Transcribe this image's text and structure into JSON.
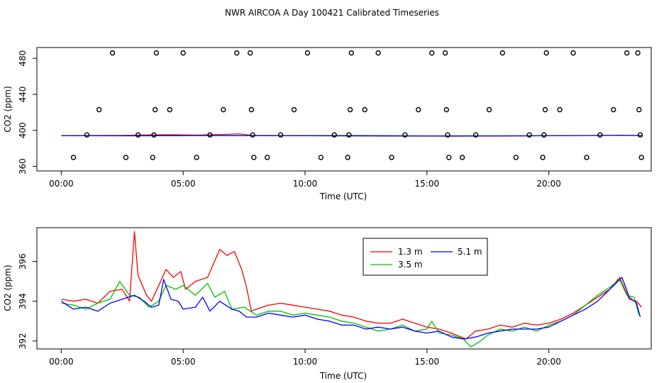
{
  "title": "NWR AIRCOA A  Day 100421  Calibrated Timeseries",
  "colors": {
    "red": "#ff0000",
    "green": "#00c000",
    "blue": "#0000ff",
    "black": "#000000"
  },
  "chart_data": [
    {
      "type": "scatter",
      "name": "top-panel",
      "xlabel": "Time (UTC)",
      "ylabel": "CO2 (ppm)",
      "xlim": [
        -1,
        24.2
      ],
      "ylim": [
        355,
        492
      ],
      "xticks": [
        0,
        5,
        10,
        15,
        20
      ],
      "xtick_labels": [
        "00:00",
        "05:00",
        "10:00",
        "15:00",
        "20:00"
      ],
      "yticks": [
        360,
        400,
        440,
        480
      ],
      "ytick_labels": [
        "360",
        "400",
        "440",
        "480"
      ],
      "reference_points": [
        {
          "x": 0.5,
          "y": 370
        },
        {
          "x": 1.05,
          "y": 395
        },
        {
          "x": 1.55,
          "y": 423
        },
        {
          "x": 2.1,
          "y": 486
        },
        {
          "x": 2.65,
          "y": 370
        },
        {
          "x": 3.15,
          "y": 395
        },
        {
          "x": 3.75,
          "y": 370
        },
        {
          "x": 3.8,
          "y": 395
        },
        {
          "x": 3.85,
          "y": 423
        },
        {
          "x": 3.9,
          "y": 486
        },
        {
          "x": 4.45,
          "y": 423
        },
        {
          "x": 5.0,
          "y": 486
        },
        {
          "x": 5.55,
          "y": 370
        },
        {
          "x": 6.1,
          "y": 395
        },
        {
          "x": 6.65,
          "y": 423
        },
        {
          "x": 7.2,
          "y": 486
        },
        {
          "x": 7.75,
          "y": 486
        },
        {
          "x": 7.8,
          "y": 423
        },
        {
          "x": 7.85,
          "y": 395
        },
        {
          "x": 7.9,
          "y": 370
        },
        {
          "x": 8.45,
          "y": 370
        },
        {
          "x": 9.0,
          "y": 395
        },
        {
          "x": 9.55,
          "y": 423
        },
        {
          "x": 10.1,
          "y": 486
        },
        {
          "x": 10.65,
          "y": 370
        },
        {
          "x": 11.2,
          "y": 395
        },
        {
          "x": 11.75,
          "y": 370
        },
        {
          "x": 11.8,
          "y": 395
        },
        {
          "x": 11.85,
          "y": 423
        },
        {
          "x": 11.9,
          "y": 486
        },
        {
          "x": 12.45,
          "y": 423
        },
        {
          "x": 13.0,
          "y": 486
        },
        {
          "x": 13.55,
          "y": 370
        },
        {
          "x": 14.1,
          "y": 395
        },
        {
          "x": 14.65,
          "y": 423
        },
        {
          "x": 15.2,
          "y": 486
        },
        {
          "x": 15.75,
          "y": 486
        },
        {
          "x": 15.8,
          "y": 423
        },
        {
          "x": 15.85,
          "y": 395
        },
        {
          "x": 15.9,
          "y": 370
        },
        {
          "x": 16.45,
          "y": 370
        },
        {
          "x": 17.0,
          "y": 395
        },
        {
          "x": 17.55,
          "y": 423
        },
        {
          "x": 18.1,
          "y": 486
        },
        {
          "x": 18.65,
          "y": 370
        },
        {
          "x": 19.2,
          "y": 395
        },
        {
          "x": 19.75,
          "y": 370
        },
        {
          "x": 19.8,
          "y": 395
        },
        {
          "x": 19.85,
          "y": 423
        },
        {
          "x": 19.9,
          "y": 486
        },
        {
          "x": 20.45,
          "y": 423
        },
        {
          "x": 21.0,
          "y": 486
        },
        {
          "x": 21.55,
          "y": 370
        },
        {
          "x": 22.1,
          "y": 395
        },
        {
          "x": 22.65,
          "y": 423
        },
        {
          "x": 23.2,
          "y": 486
        },
        {
          "x": 23.65,
          "y": 486
        },
        {
          "x": 23.7,
          "y": 423
        },
        {
          "x": 23.75,
          "y": 395
        },
        {
          "x": 23.8,
          "y": 370
        }
      ]
    },
    {
      "type": "line",
      "name": "bottom-panel",
      "xlabel": "Time (UTC)",
      "ylabel": "CO2 (ppm)",
      "xlim": [
        -1,
        24.2
      ],
      "ylim": [
        391.6,
        397.7
      ],
      "xticks": [
        0,
        5,
        10,
        15,
        20
      ],
      "xtick_labels": [
        "00:00",
        "05:00",
        "10:00",
        "15:00",
        "20:00"
      ],
      "yticks": [
        392,
        394,
        396
      ],
      "ytick_labels": [
        "392",
        "394",
        "396"
      ],
      "legend": {
        "position": "top-center",
        "entries": [
          {
            "label": "1.3 m",
            "color": "#ff0000"
          },
          {
            "label": "3.5 m",
            "color": "#00c000"
          },
          {
            "label": "5.1 m",
            "color": "#0000ff"
          }
        ]
      },
      "series": [
        {
          "name": "1.3 m",
          "color": "#ff0000",
          "points": [
            [
              0,
              394.1
            ],
            [
              0.5,
              394.0
            ],
            [
              1,
              394.1
            ],
            [
              1.5,
              393.9
            ],
            [
              2,
              394.5
            ],
            [
              2.5,
              394.6
            ],
            [
              2.8,
              394.0
            ],
            [
              3.0,
              397.5
            ],
            [
              3.15,
              395.3
            ],
            [
              3.5,
              394.3
            ],
            [
              3.7,
              394.0
            ],
            [
              4.0,
              394.8
            ],
            [
              4.3,
              395.6
            ],
            [
              4.6,
              395.2
            ],
            [
              4.9,
              395.5
            ],
            [
              5.1,
              394.6
            ],
            [
              5.5,
              395.0
            ],
            [
              6.0,
              395.2
            ],
            [
              6.5,
              396.6
            ],
            [
              6.8,
              396.3
            ],
            [
              7.1,
              396.5
            ],
            [
              7.4,
              395.6
            ],
            [
              7.6,
              394.7
            ],
            [
              7.8,
              393.5
            ],
            [
              8,
              393.6
            ],
            [
              8.5,
              393.8
            ],
            [
              9,
              393.9
            ],
            [
              9.5,
              393.8
            ],
            [
              10,
              393.7
            ],
            [
              10.5,
              393.6
            ],
            [
              11,
              393.5
            ],
            [
              11.5,
              393.3
            ],
            [
              12,
              393.2
            ],
            [
              12.5,
              393.0
            ],
            [
              13,
              392.9
            ],
            [
              13.5,
              392.9
            ],
            [
              14,
              393.1
            ],
            [
              14.5,
              392.9
            ],
            [
              15,
              392.7
            ],
            [
              15.5,
              392.6
            ],
            [
              16,
              392.4
            ],
            [
              16.6,
              392.1
            ],
            [
              17,
              392.5
            ],
            [
              17.5,
              392.6
            ],
            [
              18,
              392.8
            ],
            [
              18.5,
              392.7
            ],
            [
              19,
              392.9
            ],
            [
              19.5,
              392.8
            ],
            [
              20,
              392.9
            ],
            [
              20.5,
              393.1
            ],
            [
              21,
              393.4
            ],
            [
              21.5,
              393.8
            ],
            [
              22,
              394.2
            ],
            [
              22.5,
              394.6
            ],
            [
              22.9,
              395.2
            ],
            [
              23.3,
              394.1
            ],
            [
              23.6,
              394.0
            ],
            [
              23.8,
              393.7
            ]
          ]
        },
        {
          "name": "3.5 m",
          "color": "#00c000",
          "points": [
            [
              0,
              393.9
            ],
            [
              0.5,
              393.8
            ],
            [
              1,
              393.6
            ],
            [
              1.5,
              393.9
            ],
            [
              2,
              394.1
            ],
            [
              2.4,
              395.0
            ],
            [
              2.8,
              394.3
            ],
            [
              3.2,
              394.2
            ],
            [
              3.6,
              393.7
            ],
            [
              4.0,
              394.0
            ],
            [
              4.3,
              394.8
            ],
            [
              4.7,
              394.6
            ],
            [
              5.0,
              394.8
            ],
            [
              5.5,
              394.3
            ],
            [
              6.0,
              394.9
            ],
            [
              6.3,
              394.2
            ],
            [
              6.7,
              394.5
            ],
            [
              7.0,
              393.6
            ],
            [
              7.5,
              393.7
            ],
            [
              8,
              393.3
            ],
            [
              8.5,
              393.5
            ],
            [
              9,
              393.5
            ],
            [
              9.5,
              393.3
            ],
            [
              10,
              393.4
            ],
            [
              10.5,
              393.3
            ],
            [
              11,
              393.2
            ],
            [
              11.5,
              393.0
            ],
            [
              12,
              392.9
            ],
            [
              12.5,
              392.7
            ],
            [
              13,
              392.5
            ],
            [
              13.5,
              392.6
            ],
            [
              14,
              392.8
            ],
            [
              14.5,
              392.5
            ],
            [
              15,
              392.6
            ],
            [
              15.2,
              393.0
            ],
            [
              15.5,
              392.4
            ],
            [
              16,
              392.3
            ],
            [
              16.5,
              392.1
            ],
            [
              16.8,
              391.7
            ],
            [
              17.2,
              392.0
            ],
            [
              17.5,
              392.3
            ],
            [
              18,
              392.6
            ],
            [
              18.5,
              392.5
            ],
            [
              19,
              392.7
            ],
            [
              19.5,
              392.5
            ],
            [
              20,
              392.8
            ],
            [
              20.5,
              393.0
            ],
            [
              21,
              393.3
            ],
            [
              21.5,
              393.8
            ],
            [
              22,
              394.3
            ],
            [
              22.5,
              394.7
            ],
            [
              22.9,
              395.1
            ],
            [
              23.2,
              394.3
            ],
            [
              23.5,
              394.2
            ],
            [
              23.7,
              393.3
            ]
          ]
        },
        {
          "name": "5.1 m",
          "color": "#0000ff",
          "points": [
            [
              0,
              394.0
            ],
            [
              0.5,
              393.6
            ],
            [
              1,
              393.7
            ],
            [
              1.5,
              393.5
            ],
            [
              2,
              393.9
            ],
            [
              2.5,
              394.1
            ],
            [
              3.0,
              394.3
            ],
            [
              3.4,
              394.0
            ],
            [
              3.7,
              393.7
            ],
            [
              4.0,
              393.8
            ],
            [
              4.2,
              395.1
            ],
            [
              4.5,
              394.1
            ],
            [
              4.8,
              394.0
            ],
            [
              5.0,
              393.6
            ],
            [
              5.5,
              393.7
            ],
            [
              5.8,
              394.2
            ],
            [
              6.1,
              393.5
            ],
            [
              6.5,
              394.0
            ],
            [
              7.0,
              393.6
            ],
            [
              7.3,
              393.5
            ],
            [
              7.6,
              393.2
            ],
            [
              8,
              393.2
            ],
            [
              8.5,
              393.4
            ],
            [
              9,
              393.3
            ],
            [
              9.5,
              393.2
            ],
            [
              10,
              393.3
            ],
            [
              10.5,
              393.1
            ],
            [
              11,
              393.0
            ],
            [
              11.5,
              392.8
            ],
            [
              12,
              392.8
            ],
            [
              12.5,
              392.6
            ],
            [
              13,
              392.7
            ],
            [
              13.5,
              392.6
            ],
            [
              14,
              392.7
            ],
            [
              14.5,
              392.5
            ],
            [
              15,
              392.4
            ],
            [
              15.5,
              392.5
            ],
            [
              16,
              392.2
            ],
            [
              16.5,
              392.1
            ],
            [
              17,
              392.2
            ],
            [
              17.5,
              392.4
            ],
            [
              18,
              392.5
            ],
            [
              18.5,
              392.6
            ],
            [
              19,
              392.6
            ],
            [
              19.5,
              392.6
            ],
            [
              20,
              392.7
            ],
            [
              20.5,
              393.0
            ],
            [
              21,
              393.3
            ],
            [
              21.5,
              393.6
            ],
            [
              22,
              394.0
            ],
            [
              22.5,
              394.6
            ],
            [
              23.0,
              395.2
            ],
            [
              23.3,
              394.2
            ],
            [
              23.6,
              393.9
            ],
            [
              23.75,
              393.2
            ]
          ]
        }
      ]
    }
  ]
}
